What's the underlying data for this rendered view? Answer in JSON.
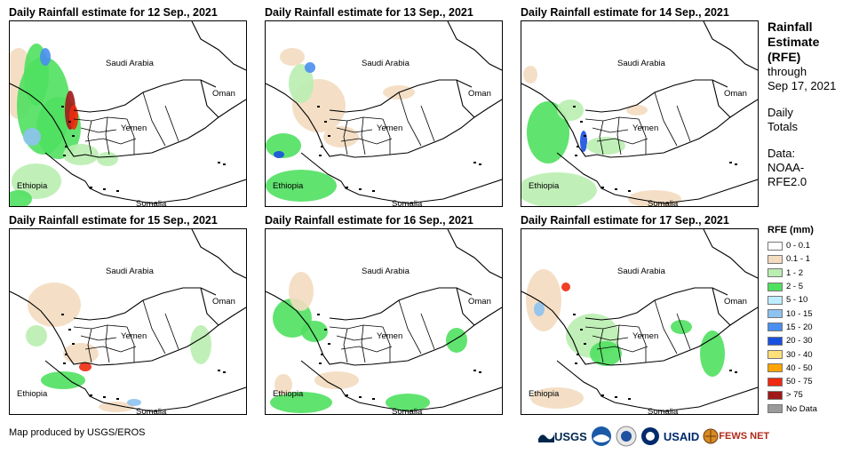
{
  "panels": [
    {
      "title": "Daily Rainfall estimate for 12 Sep., 2021"
    },
    {
      "title": "Daily Rainfall estimate for 13 Sep., 2021"
    },
    {
      "title": "Daily Rainfall estimate for 14 Sep., 2021"
    },
    {
      "title": "Daily Rainfall estimate for 15 Sep., 2021"
    },
    {
      "title": "Daily Rainfall estimate for 16 Sep., 2021"
    },
    {
      "title": "Daily Rainfall estimate for 17 Sep., 2021"
    }
  ],
  "map_labels": {
    "saudi": "Saudi Arabia",
    "oman": "Oman",
    "yemen": "Yemen",
    "ethiopia": "Ethiopia",
    "somalia": "Somalia"
  },
  "side": {
    "title1": "Rainfall",
    "title2": "Estimate",
    "title3": "(RFE)",
    "through": "through",
    "date": "Sep 17, 2021",
    "daily1": "Daily",
    "daily2": "Totals",
    "data1": "Data:",
    "data2": "NOAA-",
    "data3": "RFE2.0"
  },
  "legend": {
    "title": "RFE (mm)",
    "items": [
      {
        "label": "0 - 0.1",
        "color": "#ffffff"
      },
      {
        "label": "0.1 - 1",
        "color": "#f3dcc0"
      },
      {
        "label": "1 - 2",
        "color": "#b9eeb0"
      },
      {
        "label": "2 - 5",
        "color": "#50e060"
      },
      {
        "label": "5 - 10",
        "color": "#bdeeff"
      },
      {
        "label": "10 - 15",
        "color": "#8ec2f0"
      },
      {
        "label": "15 - 20",
        "color": "#4a8ef0"
      },
      {
        "label": "20 - 30",
        "color": "#1a50e0"
      },
      {
        "label": "30 - 40",
        "color": "#ffe07a"
      },
      {
        "label": "40 - 50",
        "color": "#ffa500"
      },
      {
        "label": "50 - 75",
        "color": "#ee2a10"
      },
      {
        "label": "> 75",
        "color": "#a01818"
      },
      {
        "label": "No Data",
        "color": "#9a9a9a"
      }
    ]
  },
  "footer": "Map produced by USGS/EROS",
  "logos": {
    "usgs": "USGS",
    "usaid": "USAID",
    "fews": "FEWS NET"
  }
}
